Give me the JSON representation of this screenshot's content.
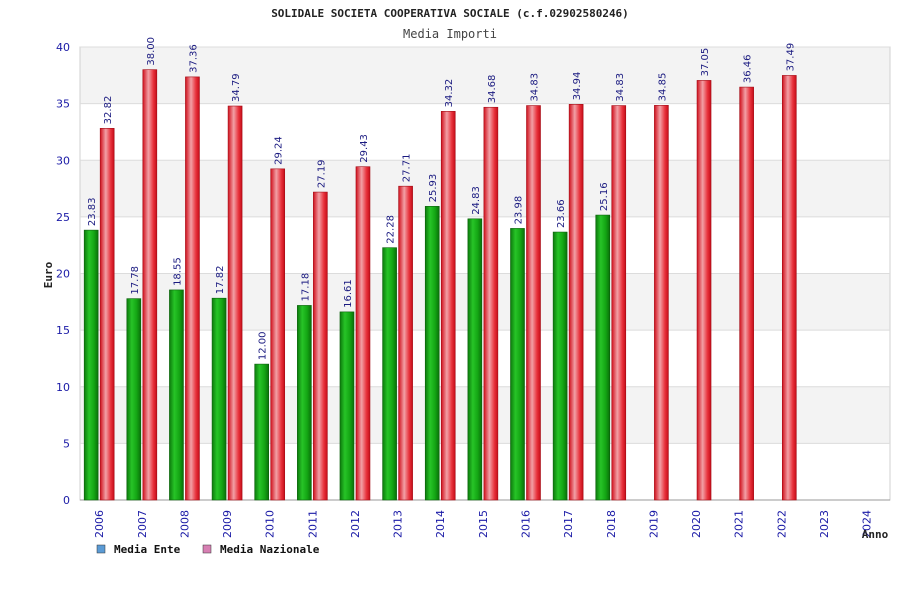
{
  "chart_data": {
    "type": "bar",
    "title": "SOLIDALE SOCIETA COOPERATIVA SOCIALE (c.f.02902580246)",
    "subtitle": "Media Importi",
    "ylabel": "Euro",
    "xlabel": "Anno",
    "ylim": [
      0,
      40
    ],
    "yticks": [
      0,
      5,
      10,
      15,
      20,
      25,
      30,
      35,
      40
    ],
    "grid": true,
    "legend_position": "bottom-left",
    "categories": [
      "2006",
      "2007",
      "2008",
      "2009",
      "2010",
      "2011",
      "2012",
      "2013",
      "2014",
      "2015",
      "2016",
      "2017",
      "2018",
      "2019",
      "2020",
      "2021",
      "2022",
      "2023",
      "2024"
    ],
    "series": [
      {
        "name": "Media Ente",
        "color": "#19b219",
        "legend_color": "#5b9bd5",
        "values": [
          23.83,
          17.78,
          18.55,
          17.82,
          12.0,
          17.18,
          16.61,
          22.28,
          25.93,
          24.83,
          23.98,
          23.66,
          25.16,
          null,
          null,
          null,
          null,
          null,
          null
        ],
        "labels": [
          "23.83",
          "17.78",
          "18.55",
          "17.82",
          "12.00",
          "17.18",
          "16.61",
          "22.28",
          "25.93",
          "24.83",
          "23.98",
          "23.66",
          "25.16",
          null,
          null,
          null,
          null,
          null,
          null
        ]
      },
      {
        "name": "Media Nazionale",
        "color": "#e8323c",
        "legend_color": "#d77fb3",
        "values": [
          32.82,
          38.0,
          37.36,
          34.79,
          29.24,
          27.19,
          29.43,
          27.71,
          34.32,
          34.68,
          34.83,
          34.94,
          34.83,
          34.85,
          37.05,
          36.46,
          37.49,
          null,
          null
        ],
        "labels": [
          "32.82",
          "38.00",
          "37.36",
          "34.79",
          "29.24",
          "27.19",
          "29.43",
          "27.71",
          "34.32",
          "34.68",
          "34.83",
          "34.94",
          "34.83",
          "34.85",
          "37.05",
          "36.46",
          "37.49",
          null,
          null
        ]
      }
    ]
  }
}
